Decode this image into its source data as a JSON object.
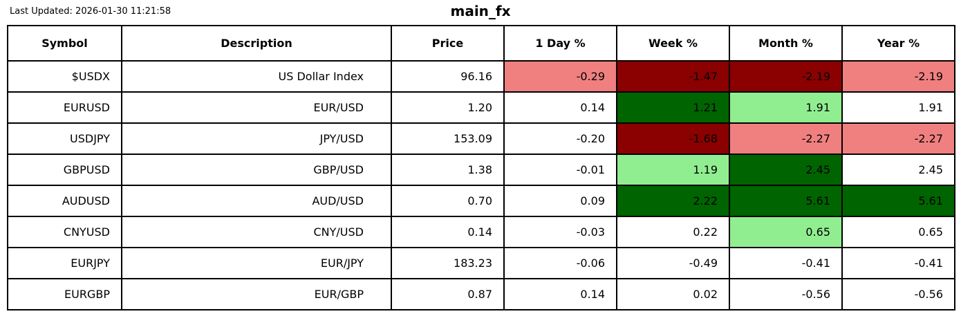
{
  "chart_data": {
    "type": "table",
    "title": "main_fx",
    "last_updated": "Last Updated: 2026-01-30 11:21:58",
    "columns": [
      "Symbol",
      "Description",
      "Price",
      "1 Day %",
      "Week %",
      "Month %",
      "Year %"
    ],
    "palette": {
      "strong_loss": "#8b0000",
      "loss": "#f08080",
      "gain": "#90ee90",
      "strong_gain": "#006400",
      "neutral": "#ffffff"
    },
    "rows": [
      {
        "symbol": "$USDX",
        "description": "US Dollar Index",
        "price": "96.16",
        "day": "-0.29",
        "week": "-1.47",
        "month": "-2.19",
        "year": "-2.19",
        "day_bg": "#f08080",
        "week_bg": "#8b0000",
        "month_bg": "#8b0000",
        "year_bg": "#f08080"
      },
      {
        "symbol": "EURUSD",
        "description": "EUR/USD",
        "price": "1.20",
        "day": "0.14",
        "week": "1.21",
        "month": "1.91",
        "year": "1.91",
        "week_bg": "#006400",
        "month_bg": "#90ee90"
      },
      {
        "symbol": "USDJPY",
        "description": "JPY/USD",
        "price": "153.09",
        "day": "-0.20",
        "week": "-1.68",
        "month": "-2.27",
        "year": "-2.27",
        "week_bg": "#8b0000",
        "month_bg": "#f08080",
        "year_bg": "#f08080"
      },
      {
        "symbol": "GBPUSD",
        "description": "GBP/USD",
        "price": "1.38",
        "day": "-0.01",
        "week": "1.19",
        "month": "2.45",
        "year": "2.45",
        "week_bg": "#90ee90",
        "month_bg": "#006400"
      },
      {
        "symbol": "AUDUSD",
        "description": "AUD/USD",
        "price": "0.70",
        "day": "0.09",
        "week": "2.22",
        "month": "5.61",
        "year": "5.61",
        "week_bg": "#006400",
        "month_bg": "#006400",
        "year_bg": "#006400"
      },
      {
        "symbol": "CNYUSD",
        "description": "CNY/USD",
        "price": "0.14",
        "day": "-0.03",
        "week": "0.22",
        "month": "0.65",
        "year": "0.65",
        "month_bg": "#90ee90"
      },
      {
        "symbol": "EURJPY",
        "description": "EUR/JPY",
        "price": "183.23",
        "day": "-0.06",
        "week": "-0.49",
        "month": "-0.41",
        "year": "-0.41"
      },
      {
        "symbol": "EURGBP",
        "description": "EUR/GBP",
        "price": "0.87",
        "day": "0.14",
        "week": "0.02",
        "month": "-0.56",
        "year": "-0.56"
      }
    ]
  }
}
